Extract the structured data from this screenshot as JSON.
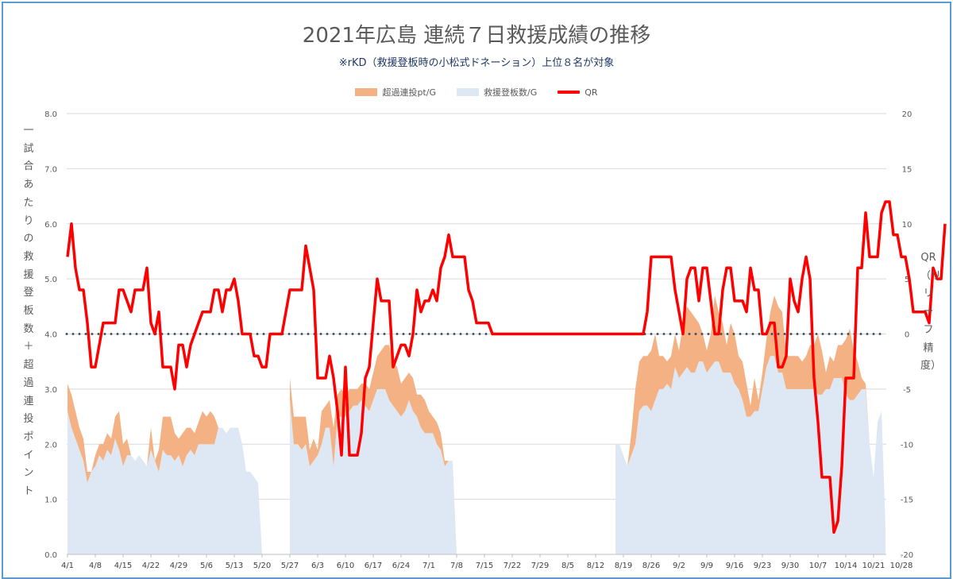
{
  "chart_data": {
    "type": "area",
    "title": "2021年広島 連続７日救援成績の推移",
    "subtitle": "※rKD（救援登板時の小松式ドネーション）上位８名が対象",
    "legend": [
      "超過連投pt/G",
      "救援登板数/G",
      "QR"
    ],
    "legend_placement": "top",
    "ylabel_left": "一試合あたりの救援登板数＋超過連投ポイント",
    "ylabel_right": "QR（リリーフ精度）",
    "ylim_left": [
      0,
      8
    ],
    "ylim_right": [
      -20,
      20
    ],
    "yticks_left": [
      "0.0",
      "1.0",
      "2.0",
      "3.0",
      "4.0",
      "5.0",
      "6.0",
      "7.0",
      "8.0"
    ],
    "yticks_right": [
      "-20",
      "-15",
      "-10",
      "-5",
      "0",
      "5",
      "10",
      "15",
      "20"
    ],
    "reference_line_right": 0,
    "grid": true,
    "x_tick_labels": [
      "4/1",
      "4/8",
      "4/15",
      "4/22",
      "4/29",
      "5/6",
      "5/13",
      "5/20",
      "5/27",
      "6/3",
      "6/10",
      "6/17",
      "6/24",
      "7/1",
      "7/8",
      "7/15",
      "7/22",
      "7/29",
      "8/5",
      "8/12",
      "8/19",
      "8/26",
      "9/2",
      "9/9",
      "9/16",
      "9/23",
      "9/30",
      "10/7",
      "10/14",
      "10/21",
      "10/28"
    ],
    "x_start": "4/1",
    "series": [
      {
        "name": "救援登板数/G",
        "color": "#dde8f4",
        "values": [
          2.6,
          2.3,
          2.1,
          1.9,
          1.7,
          1.3,
          1.5,
          1.6,
          1.8,
          1.7,
          1.9,
          1.8,
          2.1,
          1.9,
          1.6,
          1.8,
          1.8,
          1.7,
          1.8,
          1.7,
          1.6,
          1.9,
          1.7,
          1.5,
          1.9,
          1.8,
          1.8,
          1.7,
          1.8,
          1.6,
          1.8,
          1.9,
          1.8,
          2.0,
          2.0,
          2.0,
          2.0,
          2.0,
          2.3,
          2.3,
          2.2,
          2.3,
          2.3,
          2.3,
          2.0,
          1.5,
          1.5,
          1.4,
          1.3,
          0.0,
          null,
          null,
          null,
          null,
          null,
          null,
          2.8,
          2.0,
          2.0,
          1.9,
          2.0,
          1.6,
          1.7,
          1.8,
          2.0,
          2.3,
          2.3,
          1.6,
          2.5,
          2.5,
          2.5,
          2.6,
          2.7,
          2.7,
          2.8,
          2.7,
          2.6,
          2.8,
          3.0,
          3.0,
          3.0,
          2.8,
          2.7,
          2.6,
          2.5,
          2.6,
          2.8,
          2.6,
          2.5,
          2.3,
          2.2,
          2.2,
          2.2,
          2.0,
          1.9,
          1.6,
          1.7,
          1.7,
          0.0,
          null,
          null,
          null,
          null,
          null,
          null,
          null,
          null,
          null,
          null,
          null,
          null,
          null,
          null,
          null,
          null,
          null,
          null,
          null,
          null,
          null,
          null,
          null,
          null,
          null,
          null,
          null,
          null,
          null,
          null,
          null,
          null,
          null,
          null,
          null,
          null,
          null,
          null,
          null,
          2.0,
          2.0,
          1.8,
          1.6,
          1.8,
          2.0,
          2.6,
          2.7,
          2.7,
          2.6,
          2.8,
          3.0,
          3.0,
          3.1,
          3.0,
          3.4,
          3.2,
          3.3,
          3.4,
          3.3,
          3.3,
          3.5,
          3.5,
          3.3,
          3.4,
          3.5,
          3.5,
          3.3,
          3.3,
          3.3,
          3.1,
          3.0,
          2.8,
          2.5,
          2.5,
          2.6,
          2.6,
          3.0,
          3.4,
          3.6,
          3.6,
          3.3,
          3.3,
          3.0,
          3.0,
          3.0,
          3.0,
          3.0,
          3.0,
          3.0,
          3.0,
          2.9,
          2.9,
          3.0,
          3.0,
          3.2,
          3.2,
          3.2,
          2.9,
          2.8,
          2.8,
          2.9,
          3.0,
          3.0,
          2.0,
          1.4,
          2.4,
          2.6,
          0.5
        ]
      },
      {
        "name": "超過連投pt/G",
        "color": "#f4b183",
        "values": [
          0.5,
          0.6,
          0.5,
          0.4,
          0.4,
          0.2,
          0.0,
          0.2,
          0.2,
          0.3,
          0.3,
          0.3,
          0.4,
          0.7,
          0.4,
          0.3,
          0.0,
          0.0,
          0.0,
          0.0,
          0.0,
          0.4,
          0.0,
          0.4,
          0.6,
          0.7,
          0.7,
          0.5,
          0.3,
          0.6,
          0.5,
          0.4,
          0.4,
          0.4,
          0.6,
          0.5,
          0.6,
          0.5,
          0.0,
          0.0,
          0.0,
          0.0,
          0.0,
          0.0,
          0.0,
          0.0,
          0.0,
          0.0,
          0.0,
          0.0,
          null,
          null,
          null,
          null,
          null,
          null,
          0.4,
          0.5,
          0.5,
          0.6,
          0.5,
          0.3,
          0.4,
          0.1,
          0.6,
          0.4,
          0.5,
          0.7,
          0.4,
          0.5,
          0.4,
          0.4,
          0.3,
          0.3,
          0.3,
          0.4,
          0.4,
          0.5,
          0.6,
          0.7,
          0.8,
          1.0,
          0.8,
          0.8,
          0.6,
          0.6,
          0.5,
          0.6,
          0.4,
          0.6,
          0.6,
          0.4,
          0.3,
          0.4,
          0.3,
          0.1,
          0.0,
          0.0,
          0.0,
          null,
          null,
          null,
          null,
          null,
          null,
          null,
          null,
          null,
          null,
          null,
          null,
          null,
          null,
          null,
          null,
          null,
          null,
          null,
          null,
          null,
          null,
          null,
          null,
          null,
          null,
          null,
          null,
          null,
          null,
          null,
          null,
          null,
          null,
          null,
          null,
          null,
          null,
          null,
          0.0,
          0.0,
          0.0,
          0.0,
          0.4,
          1.0,
          0.9,
          0.9,
          0.9,
          1.1,
          1.2,
          0.6,
          0.6,
          0.4,
          0.6,
          0.6,
          0.5,
          0.9,
          1.1,
          1.1,
          1.0,
          0.7,
          0.5,
          0.4,
          0.6,
          1.2,
          0.9,
          0.9,
          0.5,
          0.9,
          0.9,
          0.6,
          0.7,
          0.6,
          0.2,
          0.6,
          0.2,
          0.3,
          0.5,
          0.8,
          1.1,
          1.2,
          1.1,
          0.6,
          0.6,
          0.6,
          0.6,
          0.5,
          0.6,
          0.8,
          0.8,
          1.1,
          0.8,
          0.3,
          0.6,
          0.3,
          0.6,
          0.6,
          1.0,
          1.3,
          0.9,
          0.6,
          0.2,
          0.1,
          0.0,
          0.0,
          0.0,
          0.0,
          0.0
        ]
      },
      {
        "name": "QR",
        "color": "#ff0000",
        "axis": "right",
        "values": [
          7,
          10,
          6,
          4,
          4,
          1,
          -3,
          -3,
          -1,
          1,
          1,
          1,
          1,
          4,
          4,
          3,
          2,
          4,
          4,
          4,
          6,
          1,
          0,
          2,
          -3,
          -3,
          -3,
          -5,
          -1,
          -1,
          -3,
          -1,
          0,
          1,
          2,
          2,
          2,
          4,
          4,
          2,
          4,
          4,
          5,
          3,
          0,
          0,
          0,
          -2,
          -2,
          -3,
          -3,
          0,
          0,
          0,
          0,
          2,
          4,
          4,
          4,
          4,
          8,
          6,
          4,
          -4,
          -4,
          -4,
          -2,
          -4,
          -7,
          -11,
          -3,
          -11,
          -11,
          -11,
          -9,
          -4,
          -3,
          1,
          5,
          3,
          3,
          3,
          -3,
          -2,
          -1,
          -1,
          -2,
          0,
          4,
          2,
          3,
          3,
          4,
          3,
          6,
          7,
          9,
          7,
          7,
          7,
          7,
          4,
          3,
          1,
          1,
          1,
          1,
          0,
          0,
          0,
          0,
          0,
          0,
          0,
          0,
          0,
          0,
          0,
          0,
          0,
          0,
          0,
          0,
          0,
          0,
          0,
          0,
          0,
          0,
          0,
          0,
          0,
          0,
          0,
          0,
          0,
          0,
          0,
          0,
          0,
          0,
          0,
          0,
          0,
          0,
          0,
          2,
          7,
          7,
          7,
          7,
          7,
          7,
          4,
          2,
          0,
          5,
          6,
          6,
          3,
          6,
          6,
          3,
          0,
          0,
          4,
          6,
          6,
          3,
          3,
          3,
          2,
          6,
          4,
          4,
          0,
          0,
          1,
          1,
          -3,
          -3,
          -2,
          5,
          3,
          2,
          5,
          7,
          5,
          -4,
          -8,
          -13,
          -13,
          -13,
          -18,
          -17,
          -12,
          -4,
          -4,
          -4,
          6,
          6,
          11,
          7,
          7,
          7,
          11,
          12,
          12,
          9,
          9,
          7,
          7,
          5,
          2,
          2,
          2,
          2,
          1,
          6,
          5,
          5,
          10
        ]
      }
    ]
  }
}
